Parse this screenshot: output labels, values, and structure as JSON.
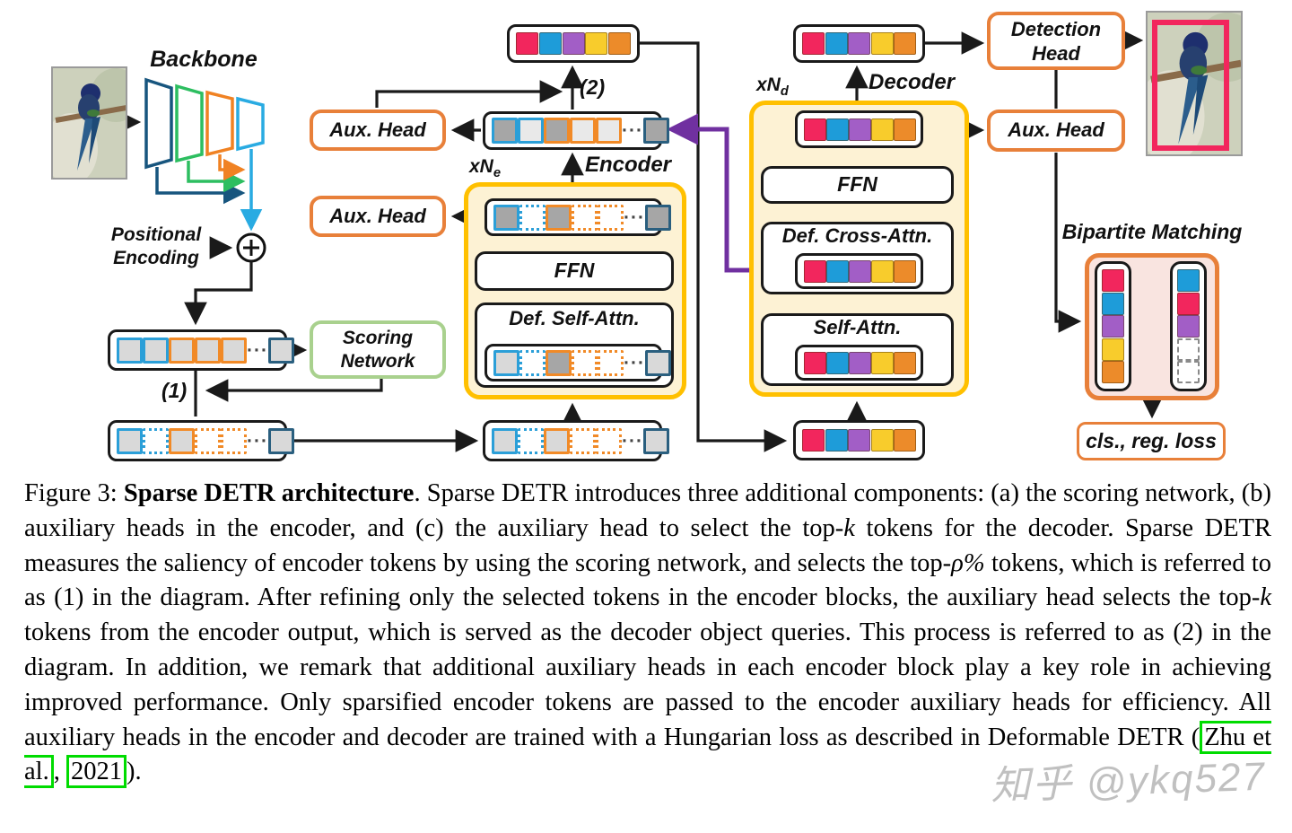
{
  "palette": {
    "gold": "#FFC000",
    "cream": "#FDF2D4",
    "boxorange": "#E8803A",
    "greenborder": "#A9D18E",
    "pinkbg": "#F9E4E0",
    "tokblue": "#2B9FD8",
    "tokorange": "#F18A27",
    "tokdarkblue": "#2A5F7F",
    "graylight": "#D9D9D9",
    "graylighter": "#E9E9E9",
    "graydark": "#A6A6A6",
    "cpink": "#F2265D",
    "cblue": "#1E9CD9",
    "cpurple": "#A25EC6",
    "cyellow": "#F8CC2C",
    "corange": "#EC8B2A",
    "redarc": "#C00000",
    "purplearrow": "#7030A0",
    "greenhl": "#00DC00",
    "bbnavy": "#17557E",
    "bbgreen": "#2DBE60",
    "bborange": "#F08223",
    "bblblue": "#29ABE2",
    "ink": "#1A1A1A",
    "dashgray": "#9E9E9E",
    "watermark": "#9B9B9B"
  },
  "figure": {
    "backbone_label": "Backbone",
    "positional_encoding_label": "Positional\nEncoding",
    "scoring_network_label": "Scoring\nNetwork",
    "aux_head_label": "Aux. Head",
    "detection_head_label": "Detection\nHead",
    "step1": "(1)",
    "step2": "(2)",
    "encoder": {
      "label": "Encoder",
      "mult_prefix": "xN",
      "mult_sub": "e",
      "ffn": "FFN",
      "def_self_attn": "Def. Self-Attn."
    },
    "decoder": {
      "label": "Decoder",
      "mult_prefix": "xN",
      "mult_sub": "d",
      "ffn": "FFN",
      "def_cross_attn": "Def. Cross-Attn.",
      "self_attn": "Self-Attn."
    },
    "bipartite_label": "Bipartite Matching",
    "loss_label": "cls., reg. loss",
    "dots": "···"
  },
  "tokens": {
    "row_pe": [
      "blue light",
      "blue light",
      "orange light",
      "orange light",
      "orange light",
      "dots",
      "darkblue light"
    ],
    "row_sparse": [
      "blue light",
      "blue none dotted",
      "orange light",
      "orange none dotted",
      "orange none dotted",
      "dots",
      "darkblue light"
    ],
    "row_enc_inner_top": [
      "blue dark",
      "blue none dotted",
      "orange dark",
      "orange none dotted",
      "orange none dotted",
      "dots",
      "darkblue dark"
    ],
    "row_enc_attn": [
      "blue light",
      "blue none dotted",
      "orange dark",
      "orange none dotted",
      "orange none dotted",
      "dots",
      "darkblue light"
    ],
    "row_enc_out": [
      "blue dark",
      "blue lighter",
      "orange dark",
      "orange lighter",
      "orange lighter",
      "dots",
      "darkblue dark"
    ],
    "row_colored": [
      "pink",
      "blue2",
      "purple",
      "yellow",
      "orange2"
    ],
    "bip_left": [
      "pink",
      "blue2",
      "purple",
      "yellow",
      "orange2"
    ],
    "bip_right": [
      "blue2",
      "pink",
      "purple",
      "empty",
      "empty"
    ]
  },
  "caption": {
    "segments": [
      {
        "t": "Figure 3: ",
        "s": ""
      },
      {
        "t": "Sparse DETR architecture",
        "s": "b"
      },
      {
        "t": ".  Sparse DETR introduces three additional components: (a) the scoring network, (b) auxiliary heads in the encoder, and (c) the auxiliary head to select the top-",
        "s": ""
      },
      {
        "t": "k",
        "s": "i"
      },
      {
        "t": " tokens for the decoder.  Sparse DETR measures the saliency of encoder tokens by using the scoring network, and selects the top-",
        "s": ""
      },
      {
        "t": "ρ%",
        "s": "i"
      },
      {
        "t": " tokens, which is referred to as (1) in the diagram.  After refining only the selected tokens in the encoder blocks, the auxiliary head selects the top-",
        "s": ""
      },
      {
        "t": "k",
        "s": "i"
      },
      {
        "t": " tokens from the encoder output, which is served as the decoder object queries.  This process is referred to as (2) in the diagram.  In addition, we remark that additional auxiliary heads in each encoder block play a key role in achieving improved performance.  Only sparsified encoder tokens are passed to the encoder auxiliary heads for efficiency.  All auxiliary heads in the encoder and decoder are trained with a Hungarian loss as described in Deformable DETR (",
        "s": ""
      },
      {
        "t": "Zhu et al.",
        "s": "g"
      },
      {
        "t": ", ",
        "s": ""
      },
      {
        "t": "2021",
        "s": "g"
      },
      {
        "t": ").",
        "s": ""
      }
    ]
  },
  "watermark": "知乎 @ykq527"
}
